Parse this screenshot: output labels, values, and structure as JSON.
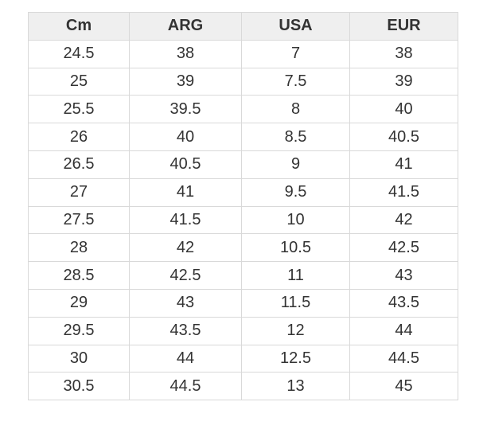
{
  "table": {
    "headers": [
      "Cm",
      "ARG",
      "USA",
      "EUR"
    ],
    "rows": [
      [
        "24.5",
        "38",
        "7",
        "38"
      ],
      [
        "25",
        "39",
        "7.5",
        "39"
      ],
      [
        "25.5",
        "39.5",
        "8",
        "40"
      ],
      [
        "26",
        "40",
        "8.5",
        "40.5"
      ],
      [
        "26.5",
        "40.5",
        "9",
        "41"
      ],
      [
        "27",
        "41",
        "9.5",
        "41.5"
      ],
      [
        "27.5",
        "41.5",
        "10",
        "42"
      ],
      [
        "28",
        "42",
        "10.5",
        "42.5"
      ],
      [
        "28.5",
        "42.5",
        "11",
        "43"
      ],
      [
        "29",
        "43",
        "11.5",
        "43.5"
      ],
      [
        "29.5",
        "43.5",
        "12",
        "44"
      ],
      [
        "30",
        "44",
        "12.5",
        "44.5"
      ],
      [
        "30.5",
        "44.5",
        "13",
        "45"
      ]
    ]
  },
  "colors": {
    "header_bg": "#efefef",
    "border": "#d9d9d9",
    "text": "#333333"
  }
}
